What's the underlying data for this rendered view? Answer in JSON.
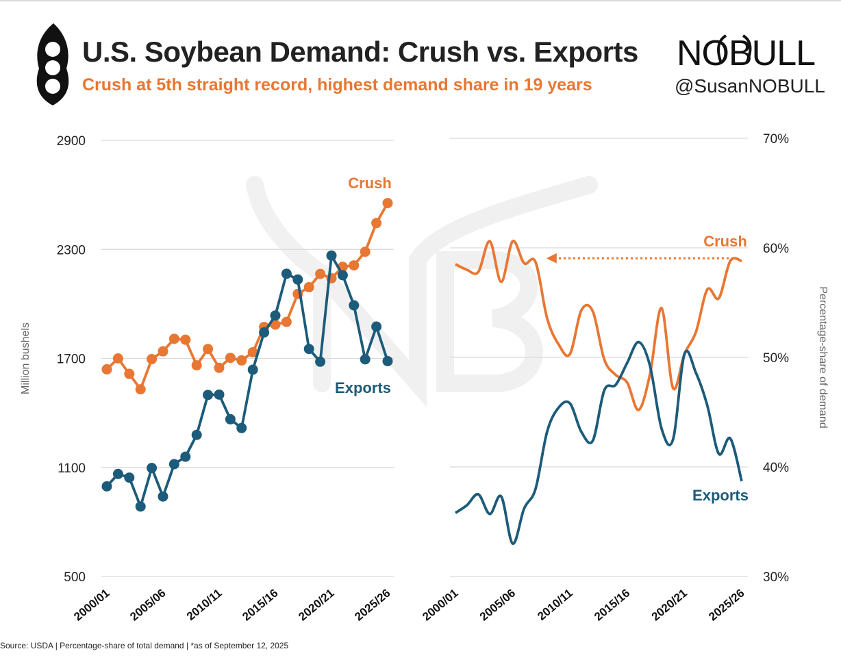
{
  "header": {
    "title": "U.S. Soybean Demand: Crush vs. Exports",
    "subtitle": "Crush at 5th straight record, highest demand share in 19 years",
    "brand": "NOBULL",
    "handle": "@SusanNOBULL"
  },
  "footer": {
    "source": "Source: USDA | Percentage-share of total demand | *as of September 12, 2025"
  },
  "colors": {
    "crush": "#e87733",
    "exports": "#1c5b7a",
    "grid": "#d9d9d9",
    "watermark": "#ededed"
  },
  "chart_data": [
    {
      "type": "line",
      "title": "U.S. Soybean Demand: Crush vs. Exports (volume)",
      "xlabel": "",
      "ylabel": "Million bushels",
      "ylim": [
        500,
        2900
      ],
      "yticks": [
        500,
        1100,
        1700,
        2300,
        2900
      ],
      "ytick_labels": [
        "500",
        "1100",
        "1700",
        "2300",
        "2900"
      ],
      "x_tick_labels": [
        "2000/01",
        "2005/06",
        "2010/11",
        "2015/16",
        "2020/21",
        "2025/26"
      ],
      "categories": [
        "2000/01",
        "2001/02",
        "2002/03",
        "2003/04",
        "2004/05",
        "2005/06",
        "2006/07",
        "2007/08",
        "2008/09",
        "2009/10",
        "2010/11",
        "2011/12",
        "2012/13",
        "2013/14",
        "2014/15",
        "2015/16",
        "2016/17",
        "2017/18",
        "2018/19",
        "2019/20",
        "2020/21",
        "2021/22",
        "2022/23",
        "2023/24",
        "2024/25",
        "2025/26"
      ],
      "series": [
        {
          "name": "Crush",
          "label": "Crush",
          "values": [
            1640,
            1700,
            1615,
            1530,
            1696,
            1739,
            1808,
            1803,
            1662,
            1752,
            1648,
            1703,
            1689,
            1734,
            1873,
            1886,
            1901,
            2055,
            2092,
            2165,
            2141,
            2204,
            2212,
            2287,
            2445,
            2555
          ]
        },
        {
          "name": "Exports",
          "label": "Exports",
          "values": [
            996,
            1064,
            1044,
            885,
            1097,
            940,
            1118,
            1159,
            1279,
            1499,
            1501,
            1365,
            1317,
            1638,
            1843,
            1936,
            2166,
            2134,
            1752,
            1682,
            2266,
            2158,
            1992,
            1695,
            1875,
            1685
          ]
        }
      ],
      "grid": true
    },
    {
      "type": "line",
      "title": "Percentage-share of demand",
      "xlabel": "",
      "ylabel": "Percentage-share of demand",
      "ylim": [
        30,
        70
      ],
      "yticks": [
        30,
        40,
        50,
        60,
        70
      ],
      "ytick_labels": [
        "30%",
        "40%",
        "50%",
        "60%",
        "70%"
      ],
      "x_tick_labels": [
        "2000/01",
        "2005/06",
        "2010/11",
        "2015/16",
        "2020/21",
        "2025/26"
      ],
      "categories": [
        "2000/01",
        "2001/02",
        "2002/03",
        "2003/04",
        "2004/05",
        "2005/06",
        "2006/07",
        "2007/08",
        "2008/09",
        "2009/10",
        "2010/11",
        "2011/12",
        "2012/13",
        "2013/14",
        "2014/15",
        "2015/16",
        "2016/17",
        "2017/18",
        "2018/19",
        "2019/20",
        "2020/21",
        "2021/22",
        "2022/23",
        "2023/24",
        "2024/25",
        "2025/26"
      ],
      "series": [
        {
          "name": "Crush",
          "label": "Crush",
          "values": [
            58.5,
            58,
            57.8,
            60.6,
            56.9,
            60.6,
            58.6,
            58.7,
            53.6,
            51.2,
            50.3,
            54.3,
            54.2,
            49.8,
            48.4,
            47.7,
            45.2,
            48.5,
            54.5,
            47.2,
            50.3,
            52.3,
            56.2,
            55.4,
            58.8,
            58.8
          ]
        },
        {
          "name": "Exports",
          "label": "Exports",
          "values": [
            35.8,
            36.5,
            37.5,
            35.7,
            37.3,
            33,
            36.2,
            38,
            43.2,
            45.4,
            45.8,
            43.2,
            42.4,
            47,
            47.5,
            49.5,
            51.4,
            49.2,
            43.5,
            42.5,
            50.3,
            48.6,
            45.6,
            41.2,
            42.6,
            38.7
          ]
        }
      ],
      "annotations": [
        {
          "text": "dotted arrow from 2025/26 crush share back to 2006/07 level"
        }
      ],
      "grid": true
    }
  ]
}
